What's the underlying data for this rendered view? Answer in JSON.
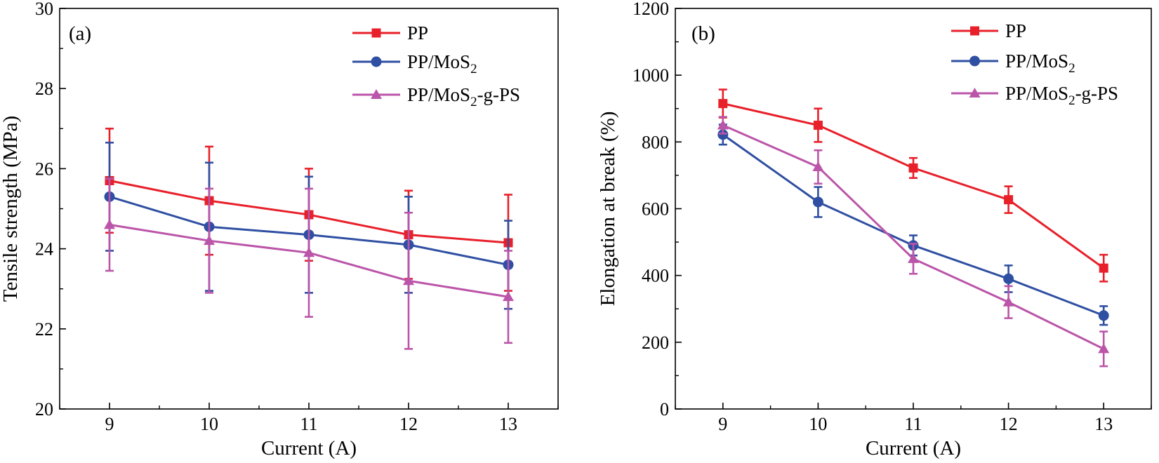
{
  "chart_data": [
    {
      "type": "line",
      "panel_label": "(a)",
      "xlabel": "Current (A)",
      "ylabel": "Tensile strength (MPa)",
      "x": [
        9,
        10,
        11,
        12,
        13
      ],
      "x_tick_labels": [
        "9",
        "10",
        "11",
        "12",
        "13"
      ],
      "xlim": [
        8.5,
        13.5
      ],
      "ylim": [
        20,
        30
      ],
      "y_ticks": [
        20,
        22,
        24,
        26,
        28,
        30
      ],
      "y_tick_labels": [
        "20",
        "22",
        "24",
        "26",
        "28",
        "30"
      ],
      "legend_position": "top-right",
      "series": [
        {
          "name": "PP",
          "legend_main": "PP",
          "legend_sub": "",
          "legend_tail": "",
          "marker": "square",
          "color": "#e8202a",
          "values": [
            25.7,
            25.2,
            24.85,
            24.35,
            24.15
          ],
          "errors": [
            1.3,
            1.35,
            1.15,
            1.1,
            1.2
          ]
        },
        {
          "name": "PP/MoS2",
          "legend_main": "PP/MoS",
          "legend_sub": "2",
          "legend_tail": "",
          "marker": "circle",
          "color": "#2f4fa2",
          "values": [
            25.3,
            24.55,
            24.35,
            24.1,
            23.6
          ],
          "errors": [
            1.35,
            1.6,
            1.45,
            1.2,
            1.1
          ]
        },
        {
          "name": "PP/MoS2-g-PS",
          "legend_main": "PP/MoS",
          "legend_sub": "2",
          "legend_tail": "-g-PS",
          "marker": "triangle",
          "color": "#bb55a9",
          "values": [
            24.6,
            24.2,
            23.9,
            23.2,
            22.8
          ],
          "errors": [
            1.15,
            1.3,
            1.6,
            1.7,
            1.15
          ]
        }
      ]
    },
    {
      "type": "line",
      "panel_label": "(b)",
      "xlabel": "Current (A)",
      "ylabel": "Elongation at break (%)",
      "x": [
        9,
        10,
        11,
        12,
        13
      ],
      "x_tick_labels": [
        "9",
        "10",
        "11",
        "12",
        "13"
      ],
      "xlim": [
        8.5,
        13.5
      ],
      "ylim": [
        0,
        1200
      ],
      "y_ticks": [
        0,
        200,
        400,
        600,
        800,
        1000,
        1200
      ],
      "y_tick_labels": [
        "0",
        "200",
        "400",
        "600",
        "800",
        "1000",
        "1200"
      ],
      "legend_position": "top-right",
      "series": [
        {
          "name": "PP",
          "legend_main": "PP",
          "legend_sub": "",
          "legend_tail": "",
          "marker": "square",
          "color": "#e8202a",
          "values": [
            915,
            850,
            722,
            627,
            422
          ],
          "errors": [
            42,
            50,
            30,
            40,
            40
          ]
        },
        {
          "name": "PP/MoS2",
          "legend_main": "PP/MoS",
          "legend_sub": "2",
          "legend_tail": "",
          "marker": "circle",
          "color": "#2f4fa2",
          "values": [
            822,
            620,
            490,
            390,
            280
          ],
          "errors": [
            30,
            45,
            30,
            40,
            28
          ]
        },
        {
          "name": "PP/MoS2-g-PS",
          "legend_main": "PP/MoS",
          "legend_sub": "2",
          "legend_tail": "-g-PS",
          "marker": "triangle",
          "color": "#bb55a9",
          "values": [
            850,
            725,
            450,
            320,
            180
          ],
          "errors": [
            25,
            50,
            45,
            48,
            52
          ]
        }
      ]
    }
  ]
}
